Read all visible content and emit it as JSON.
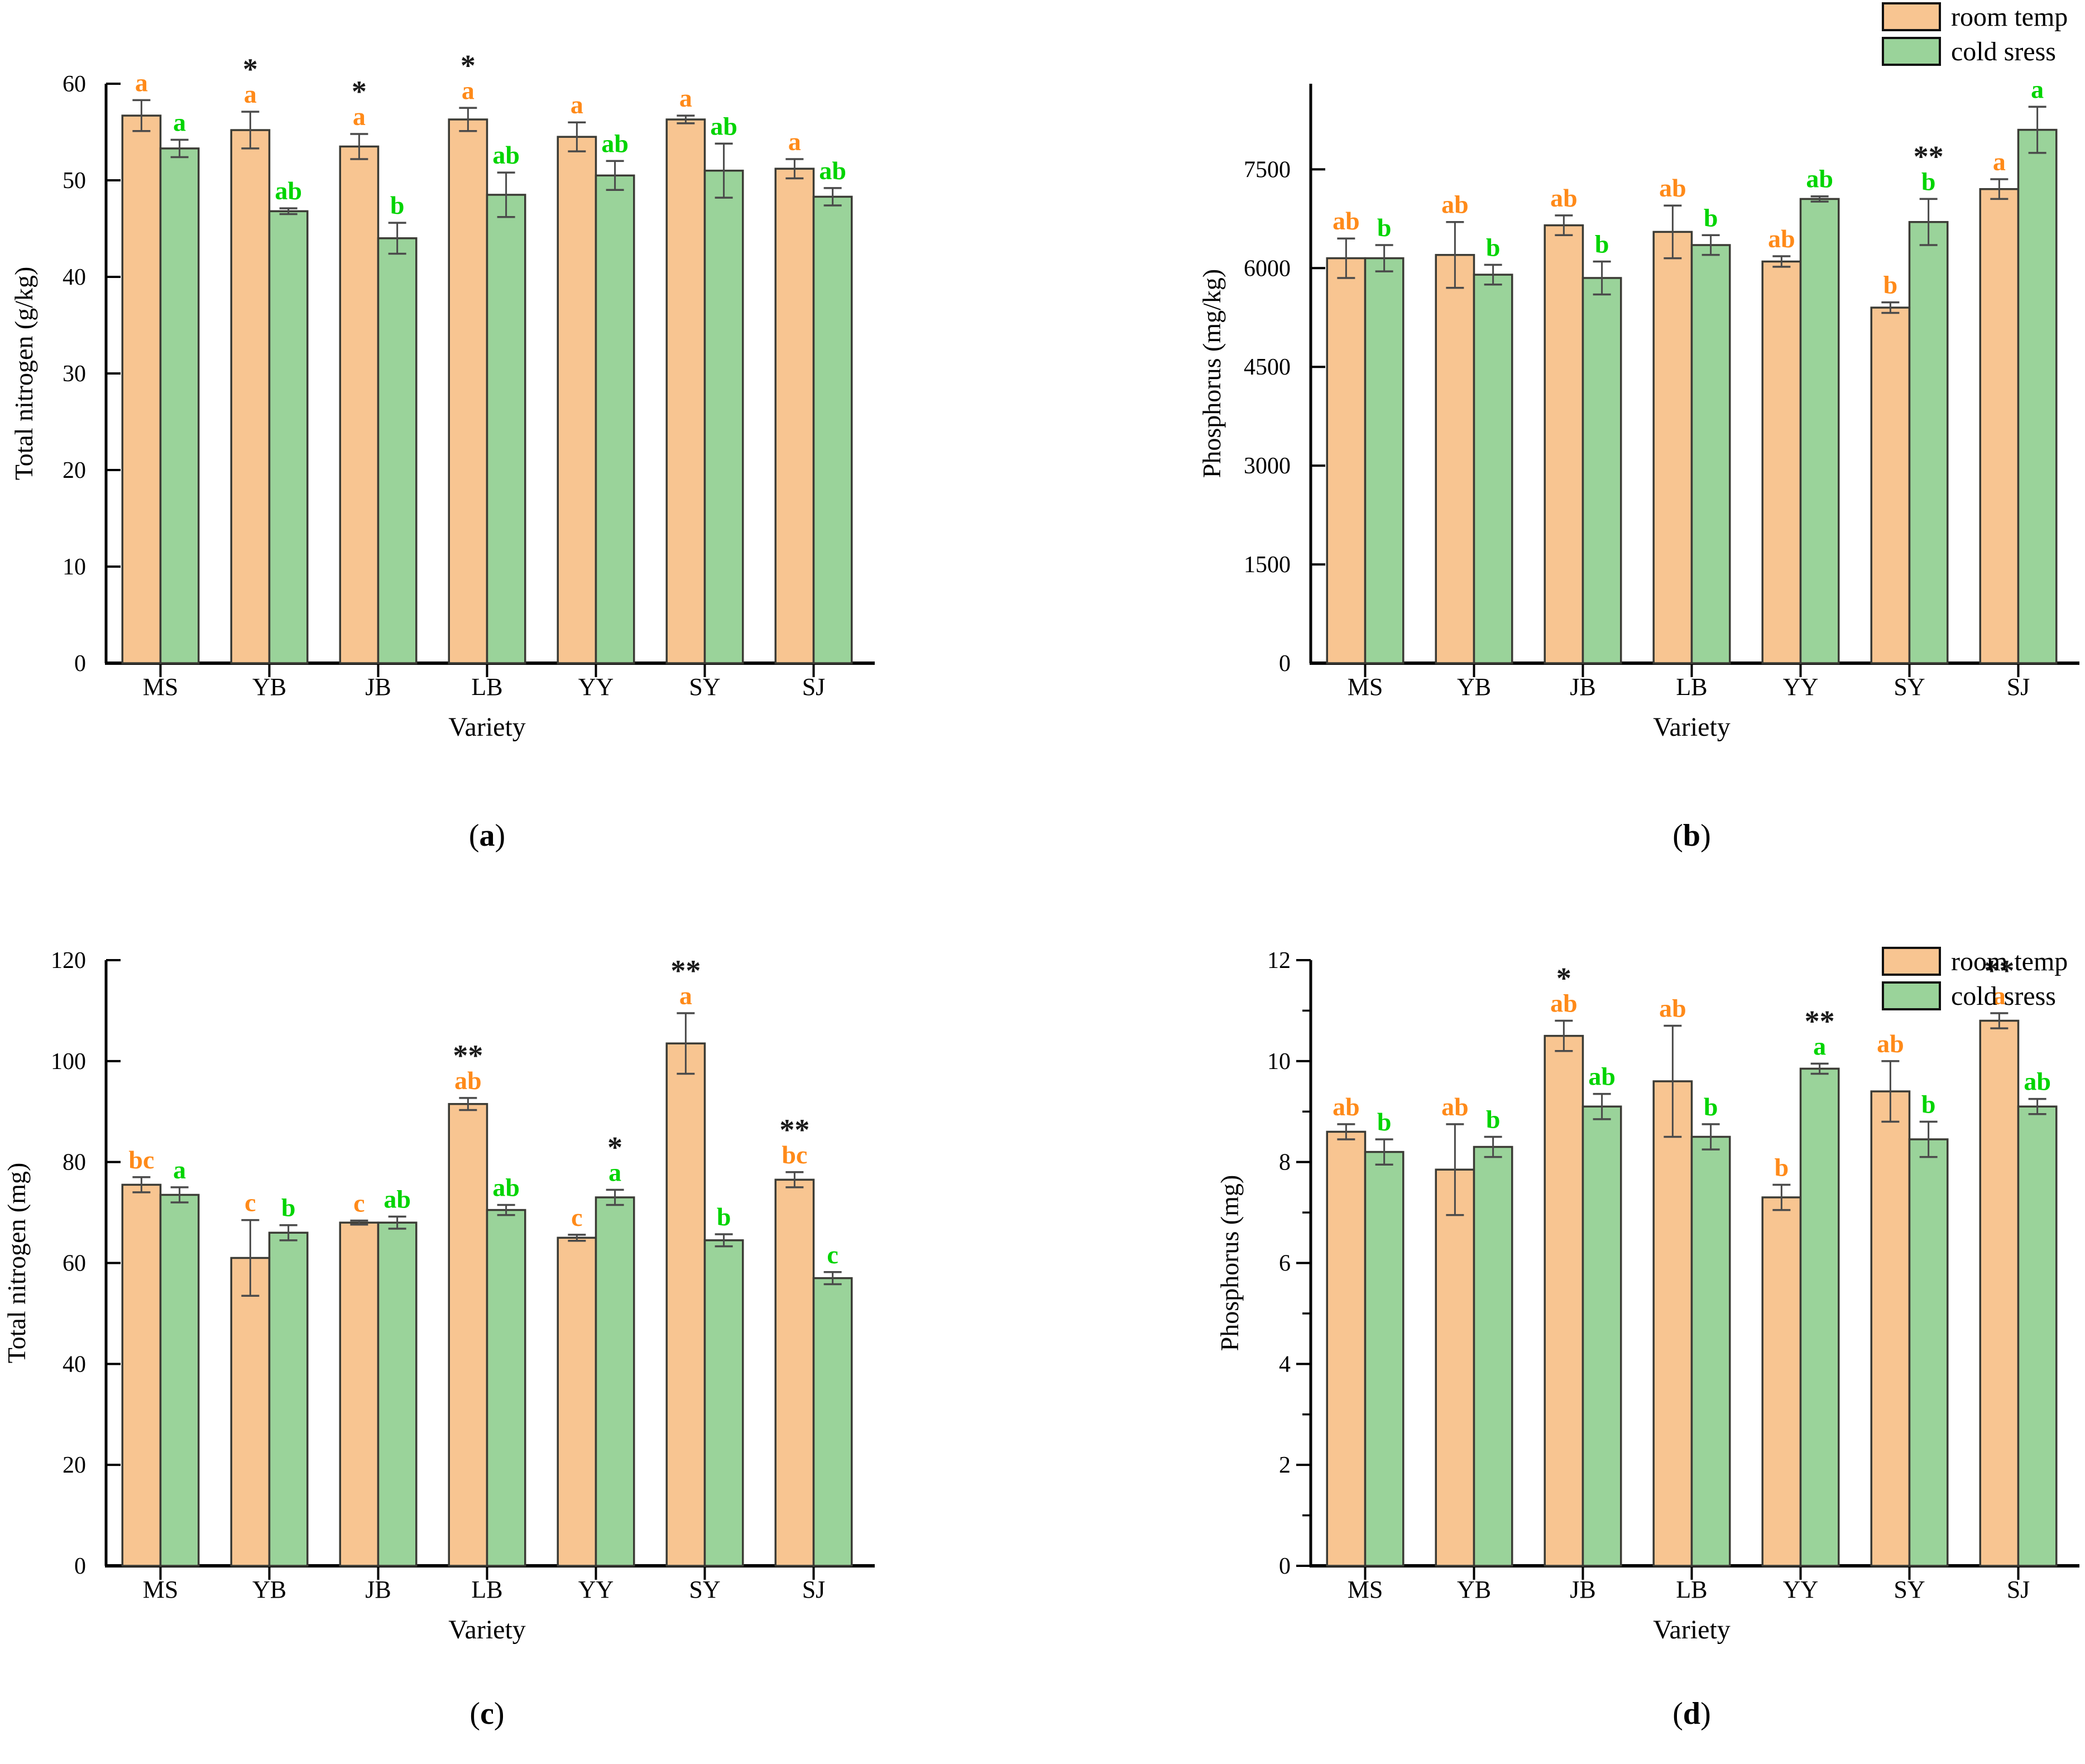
{
  "figure": {
    "background": "#ffffff",
    "legend": {
      "items": [
        {
          "label": "room temp",
          "color_key": "room"
        },
        {
          "label": "cold sress",
          "color_key": "cold"
        }
      ]
    },
    "colors": {
      "room": "#F8C591",
      "cold": "#9AD39A",
      "bar_edge": "#3B3B35",
      "error": "#4A4A4A",
      "room_label": "#FF8A19",
      "cold_label": "#00D400",
      "sig": "#1A1A1A",
      "axis": "#000000"
    }
  },
  "chart_data": [
    {
      "id": "a",
      "caption": "a",
      "type": "bar",
      "title": "",
      "xlabel": "Variety",
      "ylabel": "Total nitrogen (g/kg)",
      "categories": [
        "MS",
        "YB",
        "JB",
        "LB",
        "YY",
        "SY",
        "SJ"
      ],
      "ylim": [
        0,
        60
      ],
      "yticks": [
        0,
        10,
        20,
        30,
        40,
        50,
        60
      ],
      "minor_ticks": false,
      "legend": false,
      "grid": false,
      "legend_position": "none",
      "series": [
        {
          "name": "room temp",
          "values": [
            56.7,
            55.2,
            53.5,
            56.3,
            54.5,
            56.3,
            51.2
          ],
          "errors": [
            1.6,
            1.9,
            1.3,
            1.2,
            1.5,
            0.4,
            1.0
          ],
          "letters": [
            "a",
            "a",
            "a",
            "a",
            "a",
            "a",
            "a"
          ],
          "sig": [
            "",
            "*",
            "*",
            "*",
            "",
            "",
            ""
          ]
        },
        {
          "name": "cold sress",
          "values": [
            53.3,
            46.8,
            44.0,
            48.5,
            50.5,
            51.0,
            48.3
          ],
          "errors": [
            0.9,
            0.3,
            1.6,
            2.3,
            1.5,
            2.8,
            0.9
          ],
          "letters": [
            "a",
            "ab",
            "b",
            "ab",
            "ab",
            "ab",
            "ab"
          ],
          "sig": [
            "",
            "",
            "",
            "",
            "",
            "",
            ""
          ]
        }
      ]
    },
    {
      "id": "b",
      "caption": "b",
      "type": "bar",
      "title": "",
      "xlabel": "Variety",
      "ylabel": "Phosphorus (mg/kg)",
      "categories": [
        "MS",
        "YB",
        "JB",
        "LB",
        "YY",
        "SY",
        "SJ"
      ],
      "ylim": [
        0,
        8800
      ],
      "yticks": [
        0,
        1500,
        3000,
        4500,
        6000,
        7500
      ],
      "minor_ticks": false,
      "legend": true,
      "grid": false,
      "legend_position": "top-right",
      "series": [
        {
          "name": "room temp",
          "values": [
            6150,
            6200,
            6650,
            6550,
            6100,
            5400,
            7200
          ],
          "errors": [
            300,
            500,
            150,
            400,
            80,
            80,
            150
          ],
          "letters": [
            "ab",
            "ab",
            "ab",
            "ab",
            "ab",
            "b",
            "a"
          ],
          "sig": [
            "",
            "",
            "",
            "",
            "",
            "",
            ""
          ]
        },
        {
          "name": "cold sress",
          "values": [
            6150,
            5900,
            5850,
            6350,
            7050,
            6700,
            8100
          ],
          "errors": [
            200,
            150,
            250,
            150,
            40,
            350,
            350
          ],
          "letters": [
            "b",
            "b",
            "b",
            "b",
            "ab",
            "b",
            "a"
          ],
          "sig": [
            "",
            "",
            "",
            "",
            "",
            "**",
            ""
          ]
        }
      ]
    },
    {
      "id": "c",
      "caption": "c",
      "type": "bar",
      "title": "",
      "xlabel": "Variety",
      "ylabel": "Total nitrogen (mg)",
      "categories": [
        "MS",
        "YB",
        "JB",
        "LB",
        "YY",
        "SY",
        "SJ"
      ],
      "ylim": [
        0,
        120
      ],
      "yticks": [
        0,
        20,
        40,
        60,
        80,
        100,
        120
      ],
      "minor_ticks": false,
      "legend": false,
      "grid": false,
      "legend_position": "none",
      "series": [
        {
          "name": "room temp",
          "values": [
            75.5,
            61.0,
            68.0,
            91.5,
            65.0,
            103.5,
            76.5
          ],
          "errors": [
            1.5,
            7.5,
            0.4,
            1.2,
            0.6,
            6.0,
            1.5
          ],
          "letters": [
            "bc",
            "c",
            "c",
            "ab",
            "c",
            "a",
            "bc"
          ],
          "sig": [
            "",
            "",
            "",
            "**",
            "",
            "**",
            "**"
          ]
        },
        {
          "name": "cold sress",
          "values": [
            73.5,
            66.0,
            68.0,
            70.5,
            73.0,
            64.5,
            57.0
          ],
          "errors": [
            1.5,
            1.5,
            1.2,
            1.0,
            1.5,
            1.2,
            1.2
          ],
          "letters": [
            "a",
            "b",
            "ab",
            "ab",
            "a",
            "b",
            "c"
          ],
          "sig": [
            "",
            "",
            "",
            "",
            "*",
            "",
            ""
          ]
        }
      ]
    },
    {
      "id": "d",
      "caption": "d",
      "type": "bar",
      "title": "",
      "xlabel": "Variety",
      "ylabel": "Phosphorus (mg)",
      "categories": [
        "MS",
        "YB",
        "JB",
        "LB",
        "YY",
        "SY",
        "SJ"
      ],
      "ylim": [
        0,
        12
      ],
      "yticks": [
        0,
        2,
        4,
        6,
        8,
        10,
        12
      ],
      "minor_ticks": true,
      "legend": true,
      "grid": false,
      "legend_position": "top-right",
      "series": [
        {
          "name": "room temp",
          "values": [
            8.6,
            7.85,
            10.5,
            9.6,
            7.3,
            9.4,
            10.8
          ],
          "errors": [
            0.15,
            0.9,
            0.3,
            1.1,
            0.25,
            0.6,
            0.15
          ],
          "letters": [
            "ab",
            "ab",
            "ab",
            "ab",
            "b",
            "ab",
            "a"
          ],
          "sig": [
            "",
            "",
            "*",
            "",
            "",
            "",
            "**"
          ]
        },
        {
          "name": "cold sress",
          "values": [
            8.2,
            8.3,
            9.1,
            8.5,
            9.85,
            8.45,
            9.1
          ],
          "errors": [
            0.25,
            0.2,
            0.25,
            0.25,
            0.1,
            0.35,
            0.15
          ],
          "letters": [
            "b",
            "b",
            "ab",
            "b",
            "a",
            "b",
            "ab"
          ],
          "sig": [
            "",
            "",
            "",
            "",
            "**",
            "",
            ""
          ]
        }
      ]
    }
  ]
}
